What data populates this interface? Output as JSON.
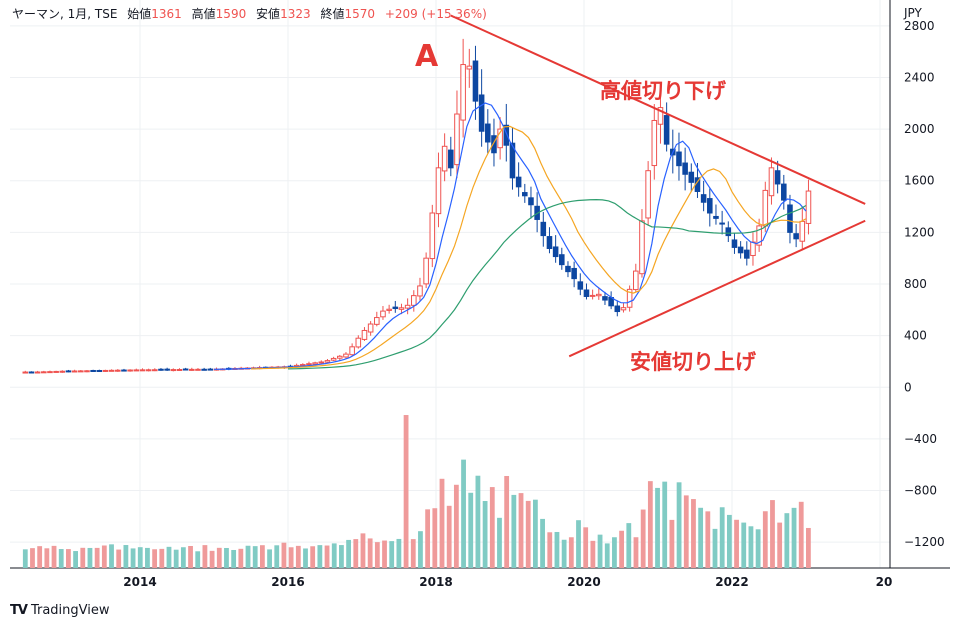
{
  "legend": {
    "symbol": "ヤーマン, 1月, TSE",
    "open_label": "始値",
    "open": "1361",
    "high_label": "高値",
    "high": "1590",
    "low_label": "安値",
    "low": "1323",
    "close_label": "終値",
    "close": "1570",
    "change": "+209 (+15.36%)"
  },
  "currency": "JPY",
  "brand": "TradingView",
  "colors": {
    "up": "#ef5350",
    "down": "#0d47a1",
    "vol_up": "#80cbc4",
    "vol_down": "#ef9a9a",
    "ma_short": "#2962ff",
    "ma_mid": "#f5a623",
    "ma_long": "#2e9e6f",
    "annot": "#e53935"
  },
  "annotations": {
    "point_label": "A",
    "upper_line_label": "高値切り下げ",
    "lower_line_label": "安値切り上げ"
  },
  "chart_data": {
    "type": "candlestick",
    "title": "ヤーマン, 1月, TSE",
    "y_axis": {
      "ticks": [
        2800,
        2400,
        2000,
        1600,
        1200,
        800,
        400,
        0,
        -400,
        -800,
        -1200
      ],
      "range": [
        -1400,
        3000
      ],
      "unit": "JPY"
    },
    "x_axis": {
      "ticks": [
        "2014",
        "2016",
        "2018",
        "2020",
        "2022",
        "20"
      ]
    },
    "price_trend": {
      "dates": [
        "2012.6",
        "2013",
        "2014",
        "2015",
        "2016",
        "2016.5",
        "2016.8",
        "2017",
        "2017.3",
        "2017.6",
        "2017.8",
        "2017.9",
        "2018.0",
        "2018.1",
        "2018.2",
        "2018.3",
        "2018.4",
        "2018.6",
        "2018.8",
        "2018.9",
        "2019.0",
        "2019.3",
        "2019.5",
        "2019.7",
        "2019.9",
        "2020.0",
        "2020.2",
        "2020.35",
        "2020.5",
        "2020.7",
        "2020.85",
        "2021.0",
        "2021.1",
        "2021.3",
        "2021.5",
        "2021.7",
        "2021.9",
        "2022.0",
        "2022.2",
        "2022.4",
        "2022.5",
        "2022.7",
        "2022.8",
        "2022.9",
        "2023.0",
        "2023.05"
      ],
      "close": [
        118,
        125,
        135,
        140,
        160,
        200,
        260,
        420,
        600,
        620,
        800,
        1100,
        1600,
        1900,
        1700,
        2200,
        2650,
        2000,
        1800,
        2100,
        1650,
        1400,
        1100,
        950,
        820,
        700,
        720,
        640,
        560,
        900,
        1600,
        2300,
        1900,
        1700,
        1550,
        1350,
        1250,
        1100,
        1000,
        1300,
        1750,
        1450,
        1150,
        1150,
        1420,
        1570
      ]
    },
    "volume_bars": 110,
    "trendlines": [
      {
        "name": "高値切り下げ",
        "from": [
          "2018.2",
          2880
        ],
        "to": [
          "2023.8",
          1420
        ]
      },
      {
        "name": "安値切り上げ",
        "from": [
          "2019.8",
          240
        ],
        "to": [
          "2023.8",
          1290
        ]
      }
    ]
  }
}
